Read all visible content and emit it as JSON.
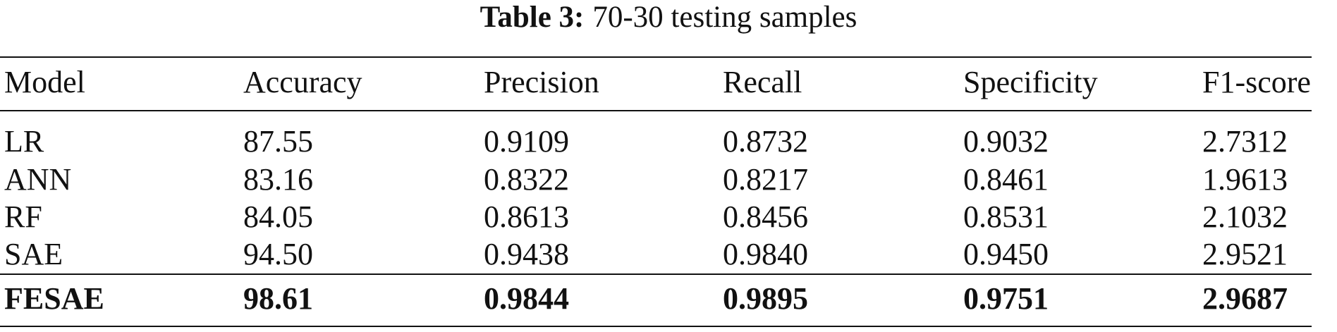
{
  "title": {
    "label": "Table 3:",
    "text": "70-30 testing samples"
  },
  "table": {
    "header": [
      "Model",
      "Accuracy",
      "Precision",
      "Recall",
      "Specificity",
      "F1-score"
    ],
    "rows": [
      [
        "LR",
        "87.55",
        "0.9109",
        "0.8732",
        "0.9032",
        "2.7312"
      ],
      [
        "ANN",
        "83.16",
        "0.8322",
        "0.8217",
        "0.8461",
        "1.9613"
      ],
      [
        "RF",
        "84.05",
        "0.8613",
        "0.8456",
        "0.8531",
        "2.1032"
      ],
      [
        "SAE",
        "94.50",
        "0.9438",
        "0.9840",
        "0.9450",
        "2.9521"
      ],
      [
        "FESAE",
        "98.61",
        "0.9844",
        "0.9895",
        "0.9751",
        "2.9687"
      ]
    ]
  }
}
